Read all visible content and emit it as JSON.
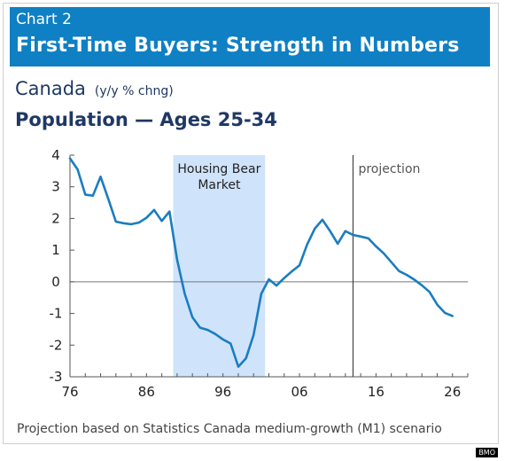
{
  "header": {
    "chart_number": "Chart 2",
    "title": "First-Time Buyers: Strength in Numbers"
  },
  "subtitle": {
    "region": "Canada",
    "unit": "(y/y % chng)"
  },
  "series_title": "Population — Ages 25-34",
  "footnote": "Projection based on Statistics Canada medium-growth (M1) scenario",
  "source_badge": "BMO",
  "colors": {
    "header_bg": "#0f80c4",
    "line": "#1a7dc0",
    "shade": "#cfe3fb",
    "axis": "#555555"
  },
  "chart_data": {
    "type": "line",
    "x_tick_labels": [
      "76",
      "86",
      "96",
      "06",
      "16",
      "26"
    ],
    "x_ticks": [
      1976,
      1986,
      1996,
      2006,
      2016,
      2026
    ],
    "y_ticks": [
      -3,
      -2,
      -1,
      0,
      1,
      2,
      3,
      4
    ],
    "xlim": [
      1976,
      2028
    ],
    "ylim": [
      -3,
      4
    ],
    "shaded_region": {
      "label_line1": "Housing Bear",
      "label_line2": "Market",
      "x_start": 1989.5,
      "x_end": 2001.5
    },
    "projection": {
      "label": "projection",
      "x": 2013
    },
    "series": [
      {
        "x": [
          1976,
          1977,
          1978,
          1979,
          1980,
          1981,
          1982,
          1983,
          1984,
          1985,
          1986,
          1987,
          1988,
          1989,
          1990,
          1991,
          1992,
          1993,
          1994,
          1995,
          1996,
          1997,
          1998,
          1999,
          2000,
          2001,
          2002,
          2003,
          2004,
          2005,
          2006,
          2007,
          2008,
          2009,
          2010,
          2011,
          2012,
          2013,
          2014,
          2015,
          2016,
          2017,
          2018,
          2019,
          2020,
          2021,
          2022,
          2023,
          2024,
          2025,
          2026
        ],
        "y": [
          3.9,
          3.55,
          2.75,
          2.72,
          3.32,
          2.62,
          1.9,
          1.85,
          1.82,
          1.87,
          2.02,
          2.27,
          1.92,
          2.22,
          0.7,
          -0.38,
          -1.12,
          -1.45,
          -1.52,
          -1.65,
          -1.82,
          -1.95,
          -2.68,
          -2.42,
          -1.68,
          -0.38,
          0.08,
          -0.12,
          0.12,
          0.33,
          0.52,
          1.18,
          1.68,
          1.96,
          1.6,
          1.2,
          1.6,
          1.48,
          1.43,
          1.37,
          1.12,
          0.9,
          0.62,
          0.34,
          0.22,
          0.07,
          -0.11,
          -0.32,
          -0.72,
          -0.98,
          -1.08
        ]
      }
    ]
  }
}
